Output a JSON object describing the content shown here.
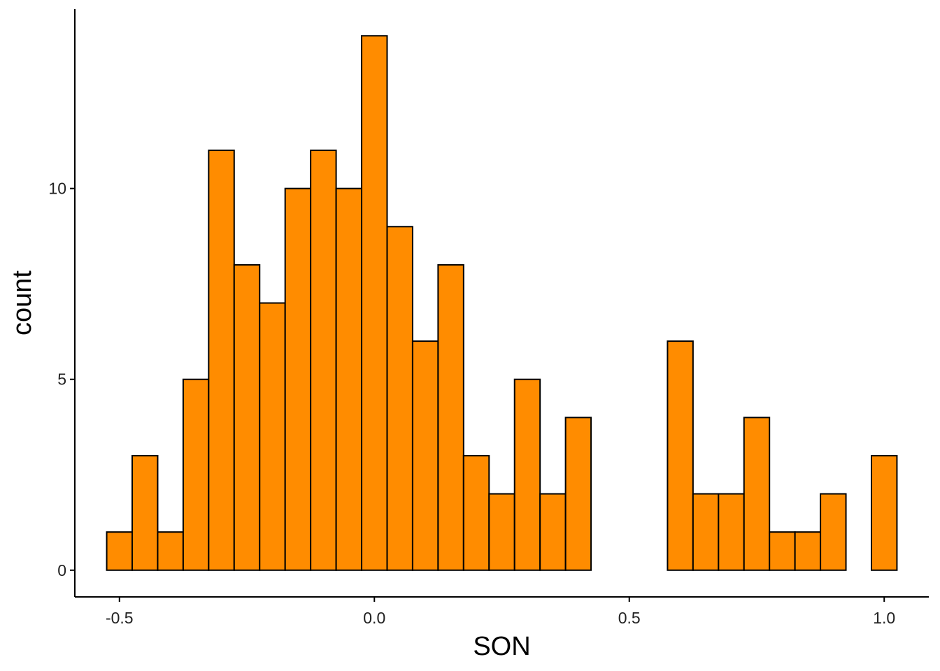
{
  "chart_data": {
    "type": "bar",
    "subtype": "histogram",
    "xlabel": "SON",
    "ylabel": "count",
    "bin_width": 0.05,
    "bins": [
      {
        "x": -0.5,
        "count": 1
      },
      {
        "x": -0.45,
        "count": 3
      },
      {
        "x": -0.4,
        "count": 1
      },
      {
        "x": -0.35,
        "count": 5
      },
      {
        "x": -0.3,
        "count": 11
      },
      {
        "x": -0.25,
        "count": 8
      },
      {
        "x": -0.2,
        "count": 7
      },
      {
        "x": -0.15,
        "count": 10
      },
      {
        "x": -0.1,
        "count": 11
      },
      {
        "x": -0.05,
        "count": 10
      },
      {
        "x": 0.0,
        "count": 14
      },
      {
        "x": 0.05,
        "count": 9
      },
      {
        "x": 0.1,
        "count": 6
      },
      {
        "x": 0.15,
        "count": 8
      },
      {
        "x": 0.2,
        "count": 3
      },
      {
        "x": 0.25,
        "count": 2
      },
      {
        "x": 0.3,
        "count": 5
      },
      {
        "x": 0.35,
        "count": 2
      },
      {
        "x": 0.4,
        "count": 4
      },
      {
        "x": 0.45,
        "count": 0
      },
      {
        "x": 0.5,
        "count": 0
      },
      {
        "x": 0.55,
        "count": 0
      },
      {
        "x": 0.6,
        "count": 6
      },
      {
        "x": 0.65,
        "count": 2
      },
      {
        "x": 0.7,
        "count": 2
      },
      {
        "x": 0.75,
        "count": 4
      },
      {
        "x": 0.8,
        "count": 1
      },
      {
        "x": 0.85,
        "count": 1
      },
      {
        "x": 0.9,
        "count": 2
      },
      {
        "x": 0.95,
        "count": 0
      },
      {
        "x": 1.0,
        "count": 3
      }
    ],
    "x_ticks": [
      {
        "value": -0.5,
        "label": "-0.5"
      },
      {
        "value": 0.0,
        "label": "0.0"
      },
      {
        "value": 0.5,
        "label": "0.5"
      },
      {
        "value": 1.0,
        "label": "1.0"
      }
    ],
    "y_ticks": [
      {
        "value": 0,
        "label": "0"
      },
      {
        "value": 5,
        "label": "5"
      },
      {
        "value": 10,
        "label": "10"
      }
    ],
    "xlim": [
      -0.5875,
      1.0875
    ],
    "ylim": [
      -0.7,
      14.7
    ],
    "grid": false,
    "legend": "none",
    "colors": {
      "bar_fill": "#FF8C00",
      "bar_stroke": "#000000",
      "axis": "#000000"
    }
  }
}
